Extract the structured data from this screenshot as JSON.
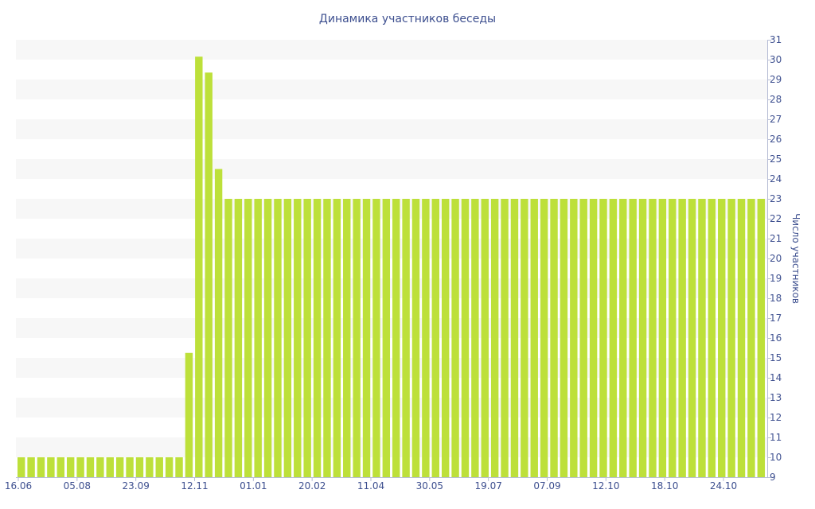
{
  "chart_data": {
    "type": "bar",
    "title": "Динамика участников беседы",
    "xlabel": "",
    "ylabel": "Число участников",
    "ylim": [
      9,
      31
    ],
    "y_ticks": [
      9,
      10,
      11,
      12,
      13,
      14,
      15,
      16,
      17,
      18,
      19,
      20,
      21,
      22,
      23,
      24,
      25,
      26,
      27,
      28,
      29,
      30,
      31
    ],
    "x_tick_labels": [
      "16.06",
      "05.08",
      "23.09",
      "12.11",
      "01.01",
      "20.02",
      "11.04",
      "30.05",
      "19.07",
      "07.09",
      "12.10",
      "18.10",
      "24.10"
    ],
    "legend": "none",
    "grid": "alternating horizontal bands",
    "bar_color": "#bde03a",
    "band_color": "#f7f7f7",
    "text_color": "#3d4f8f",
    "values": [
      10,
      10,
      10,
      10,
      10,
      10,
      10,
      10,
      10,
      10,
      10,
      10,
      10,
      10,
      10,
      10,
      10,
      15.25,
      30.15,
      29.35,
      24.5,
      23,
      23,
      23,
      23,
      23,
      23,
      23,
      23,
      23,
      23,
      23,
      23,
      23,
      23,
      23,
      23,
      23,
      23,
      23,
      23,
      23,
      23,
      23,
      23,
      23,
      23,
      23,
      23,
      23,
      23,
      23,
      23,
      23,
      23,
      23,
      23,
      23,
      23,
      23,
      23,
      23,
      23,
      23,
      23,
      23,
      23,
      23,
      23,
      23,
      23,
      23,
      23,
      23,
      23,
      23
    ]
  }
}
